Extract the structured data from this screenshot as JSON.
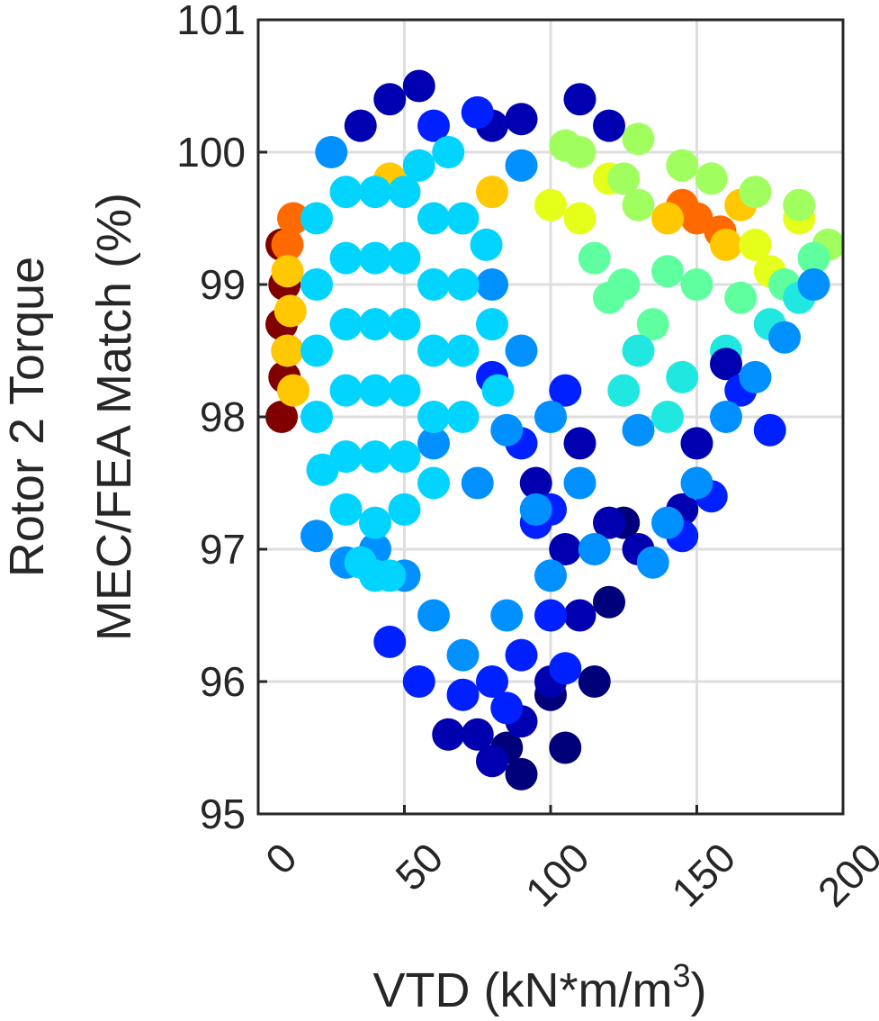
{
  "chart_data": {
    "type": "scatter",
    "xlabel": [
      "VTD (kN*m/m",
      "3",
      ")"
    ],
    "ylabel": [
      "Rotor 2 Torque",
      "MEC/FEA Match (%)"
    ],
    "xlim": [
      0,
      200
    ],
    "xticks": [
      0,
      50,
      100,
      150,
      200
    ],
    "ylim": [
      95,
      101
    ],
    "yticks": [
      95,
      96,
      97,
      98,
      99,
      100,
      101
    ],
    "grid": true,
    "series": [
      {
        "color": "#800000",
        "x": [
          8,
          9,
          8,
          9,
          8,
          10
        ],
        "values": [
          99.3,
          99.0,
          98.7,
          98.3,
          98.0,
          98.5
        ]
      },
      {
        "color": "#ff6a00",
        "x": [
          150,
          145,
          158,
          10,
          12
        ],
        "values": [
          99.5,
          99.6,
          99.4,
          99.3,
          99.5
        ]
      },
      {
        "color": "#ffc800",
        "x": [
          10,
          11,
          10,
          12,
          45,
          80,
          160,
          165,
          140
        ],
        "values": [
          99.1,
          98.8,
          98.5,
          98.2,
          99.8,
          99.7,
          99.3,
          99.6,
          99.5
        ]
      },
      {
        "color": "#e6ff1a",
        "x": [
          100,
          110,
          170,
          185,
          120,
          175
        ],
        "values": [
          99.6,
          99.5,
          99.3,
          99.5,
          99.8,
          99.1
        ]
      },
      {
        "color": "#a0ff5f",
        "x": [
          110,
          125,
          155,
          170,
          185,
          195,
          130,
          145,
          105,
          130
        ],
        "values": [
          100.0,
          99.8,
          99.8,
          99.7,
          99.6,
          99.3,
          99.6,
          99.9,
          100.05,
          100.1
        ]
      },
      {
        "color": "#5fffa0",
        "x": [
          115,
          125,
          140,
          150,
          165,
          180,
          190,
          135,
          120
        ],
        "values": [
          99.2,
          99.0,
          99.1,
          99.0,
          98.9,
          99.0,
          99.2,
          98.7,
          98.9
        ]
      },
      {
        "color": "#20e8e0",
        "x": [
          130,
          145,
          160,
          175,
          140,
          150,
          125,
          185
        ],
        "values": [
          98.5,
          98.3,
          98.5,
          98.7,
          98.0,
          97.8,
          98.2,
          98.9
        ]
      },
      {
        "color": "#00007a",
        "x": [
          90,
          105,
          115,
          120,
          125,
          85,
          100
        ],
        "values": [
          95.3,
          95.5,
          96.0,
          96.6,
          97.2,
          95.5,
          95.9
        ]
      },
      {
        "color": "#0000b0",
        "x": [
          35,
          45,
          55,
          80,
          90,
          110,
          120,
          95,
          105,
          110,
          100,
          90,
          80,
          75,
          110,
          120,
          130,
          145,
          150,
          160,
          65
        ],
        "values": [
          100.2,
          100.4,
          100.5,
          100.2,
          100.25,
          100.4,
          100.2,
          97.5,
          97.0,
          96.5,
          96.0,
          95.7,
          95.4,
          95.6,
          97.8,
          97.2,
          97.0,
          97.3,
          97.8,
          98.4,
          95.6
        ]
      },
      {
        "color": "#0020ff",
        "x": [
          80,
          90,
          95,
          100,
          90,
          80,
          70,
          55,
          45,
          100,
          105,
          75,
          60,
          85,
          105,
          165,
          175,
          155,
          145
        ],
        "values": [
          98.3,
          97.8,
          97.2,
          96.5,
          96.2,
          96.0,
          95.9,
          96.0,
          96.3,
          97.3,
          98.2,
          100.3,
          100.2,
          95.8,
          96.1,
          98.2,
          97.9,
          97.4,
          97.1
        ]
      },
      {
        "color": "#0090ff",
        "x": [
          80,
          90,
          100,
          110,
          115,
          100,
          85,
          70,
          60,
          50,
          40,
          30,
          20,
          150,
          160,
          170,
          180,
          190,
          140,
          135,
          25,
          90,
          75,
          95,
          85,
          60,
          130
        ],
        "values": [
          99.0,
          98.5,
          98.0,
          97.5,
          97.0,
          96.8,
          96.5,
          96.2,
          96.5,
          96.8,
          97.0,
          96.9,
          97.1,
          97.5,
          98.0,
          98.3,
          98.6,
          99.0,
          97.2,
          96.9,
          100.0,
          99.9,
          97.5,
          97.3,
          97.9,
          97.8,
          97.9
        ]
      },
      {
        "color": "#00d4ff",
        "x": [
          20,
          20,
          20,
          20,
          22,
          30,
          30,
          30,
          30,
          30,
          30,
          40,
          40,
          40,
          40,
          40,
          40,
          40,
          50,
          50,
          50,
          50,
          50,
          50,
          60,
          60,
          60,
          60,
          60,
          70,
          70,
          70,
          70,
          78,
          80,
          82,
          65,
          55,
          35,
          45
        ],
        "values": [
          99.5,
          99.0,
          98.5,
          98.0,
          97.6,
          99.7,
          99.2,
          98.7,
          98.2,
          97.7,
          97.3,
          99.7,
          99.2,
          98.7,
          98.2,
          97.7,
          97.2,
          96.8,
          99.7,
          99.2,
          98.7,
          98.2,
          97.7,
          97.3,
          99.5,
          99.0,
          98.5,
          98.0,
          97.5,
          99.5,
          99.0,
          98.5,
          98.0,
          99.3,
          98.7,
          98.2,
          100.0,
          99.9,
          96.9,
          96.8
        ]
      }
    ]
  }
}
